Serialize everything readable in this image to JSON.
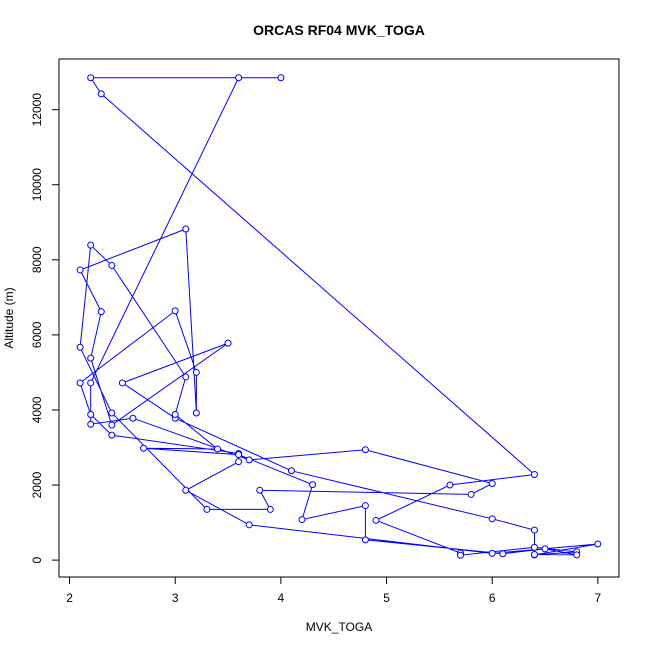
{
  "chart_data": {
    "type": "line",
    "title": "ORCAS RF04 MVK_TOGA",
    "xlabel": "MVK_TOGA",
    "ylabel": "Altitude (m)",
    "xlim": [
      1.9,
      7.2
    ],
    "ylim": [
      -450,
      13350
    ],
    "xticks": [
      2,
      3,
      4,
      5,
      6,
      7
    ],
    "yticks": [
      0,
      2000,
      4000,
      6000,
      8000,
      10000,
      12000
    ],
    "xtick_labels": [
      "2",
      "3",
      "4",
      "5",
      "6",
      "7"
    ],
    "ytick_labels": [
      "0",
      "2000",
      "4000",
      "6000",
      "8000",
      "10000",
      "12000"
    ],
    "grid": false,
    "legend": "none",
    "line_color": "#0000ff",
    "marker": "open-circle",
    "series": [
      {
        "x": [
          4.0,
          2.2,
          2.3,
          6.4,
          5.6,
          4.9,
          5.7,
          5.7,
          6.4,
          6.8,
          6.4,
          7.0,
          6.0,
          3.7,
          3.1,
          3.6,
          3.6,
          2.4,
          2.2,
          2.1,
          3.0,
          3.2,
          3.2,
          3.1,
          2.1,
          2.3,
          2.2,
          2.4,
          3.5,
          2.5,
          3.0,
          4.1,
          6.0,
          6.4,
          6.4,
          6.8,
          6.5,
          6.1,
          4.8,
          4.8,
          4.2,
          4.3,
          3.6,
          2.7,
          3.4,
          3.0,
          3.1,
          2.4,
          2.2,
          2.1,
          2.4,
          3.3,
          3.9,
          3.8,
          5.8,
          6.0,
          4.8,
          3.7,
          2.6,
          2.2,
          2.2,
          3.6
        ],
        "y": [
          12850,
          12850,
          12420,
          2280,
          2000,
          1060,
          190,
          130,
          340,
          220,
          140,
          430,
          180,
          940,
          1860,
          2620,
          2840,
          3330,
          3880,
          4720,
          6640,
          5000,
          3920,
          8820,
          7730,
          6620,
          5380,
          3600,
          5780,
          4720,
          3780,
          2380,
          1100,
          800,
          150,
          140,
          300,
          170,
          540,
          1450,
          1080,
          2010,
          2810,
          2980,
          2960,
          3880,
          4880,
          7850,
          8390,
          5670,
          3920,
          1350,
          1350,
          1860,
          1750,
          2040,
          2940,
          2670,
          3780,
          3620,
          4720,
          12850
        ]
      }
    ]
  }
}
